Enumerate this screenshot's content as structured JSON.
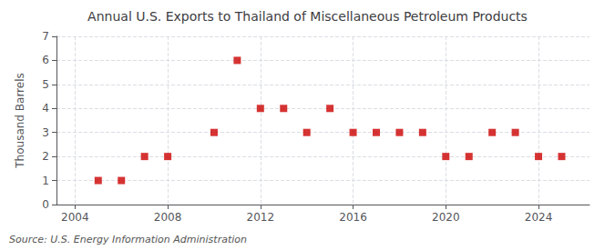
{
  "chart_data": {
    "type": "scatter",
    "title": "Annual U.S. Exports to Thailand of Miscellaneous Petroleum Products",
    "ylabel": "Thousand Barrels",
    "source": "Source: U.S. Energy Information Administration",
    "x": [
      2005,
      2006,
      2007,
      2008,
      2010,
      2011,
      2012,
      2013,
      2014,
      2015,
      2016,
      2017,
      2018,
      2019,
      2020,
      2021,
      2022,
      2023,
      2024,
      2025
    ],
    "values": [
      1,
      1,
      2,
      2,
      3,
      6,
      4,
      4,
      3,
      4,
      3,
      3,
      3,
      3,
      2,
      2,
      3,
      3,
      2,
      2
    ],
    "xlim": [
      2003.2,
      2026.2
    ],
    "xticks": [
      2004,
      2008,
      2012,
      2016,
      2020,
      2024
    ],
    "ylim": [
      0,
      7
    ],
    "yticks": [
      0,
      1,
      2,
      3,
      4,
      5,
      6,
      7
    ],
    "color": "#cc0000",
    "marker": "square",
    "grid": true
  }
}
